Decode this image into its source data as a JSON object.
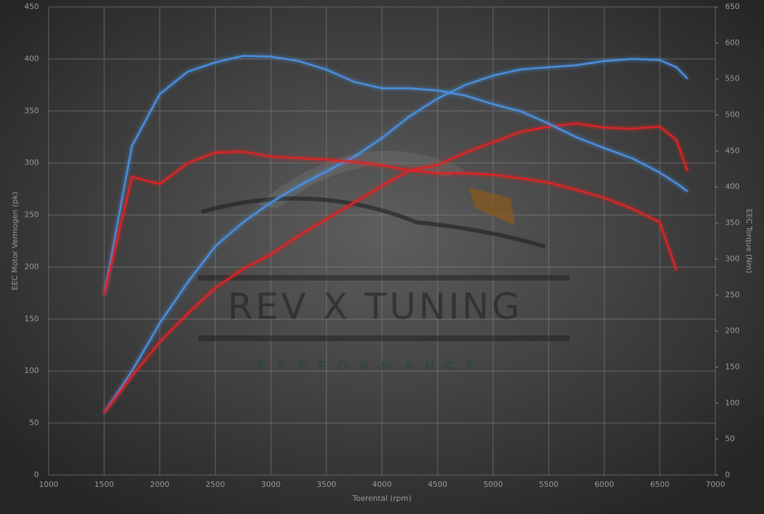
{
  "chart_data": {
    "type": "line",
    "y_label": "EEC Motor Vermogen (pk)",
    "y2_label": "EEC Torque (Nm)",
    "x_label": "Toerental (rpm)",
    "watermark": {
      "text": "REV X TUNING",
      "subtitle": "PERFORMANCE"
    },
    "x": [
      1500,
      1750,
      2000,
      2250,
      2500,
      2750,
      3000,
      3250,
      3500,
      3750,
      4000,
      4250,
      4500,
      4750,
      5000,
      5250,
      5500,
      5750,
      6000,
      6250,
      6500,
      6650,
      6750
    ],
    "series": [
      {
        "color": "#4a8fe0",
        "values": [
          60,
          100,
          146,
          185,
          220,
          243,
          262,
          278,
          292,
          306,
          324,
          345,
          362,
          375,
          384,
          390,
          392,
          394,
          398,
          400,
          399,
          392,
          381
        ]
      },
      {
        "color": "#e02424",
        "values": [
          60,
          95,
          128,
          155,
          180,
          198,
          212,
          230,
          246,
          262,
          278,
          293,
          298,
          310,
          320,
          330,
          335,
          338,
          334,
          333,
          335,
          322,
          292
        ]
      },
      {
        "color": "#4a8fe0",
        "axis": "y2",
        "values": [
          250,
          457,
          529,
          560,
          573,
          582,
          581,
          575,
          563,
          546,
          537,
          537,
          534,
          527,
          515,
          505,
          488,
          469,
          454,
          440,
          420,
          405,
          394
        ]
      },
      {
        "color": "#e02424",
        "axis": "y2",
        "values": [
          250,
          414,
          404,
          433,
          448,
          449,
          442,
          440,
          438,
          435,
          430,
          423,
          419,
          419,
          417,
          412,
          406,
          396,
          385,
          370,
          351,
          284,
          null
        ]
      }
    ],
    "xlim": [
      1000,
      7000
    ],
    "xticks": [
      1000,
      1500,
      2000,
      2500,
      3000,
      3500,
      4000,
      4500,
      5000,
      5500,
      6000,
      6500,
      7000
    ],
    "ylim": [
      0,
      450
    ],
    "yticks": [
      0,
      50,
      100,
      150,
      200,
      250,
      300,
      350,
      400,
      450
    ],
    "y2lim": [
      0,
      650
    ],
    "y2ticks": [
      0,
      50,
      100,
      150,
      200,
      250,
      300,
      350,
      400,
      450,
      500,
      550,
      600,
      650
    ],
    "grid": true
  }
}
